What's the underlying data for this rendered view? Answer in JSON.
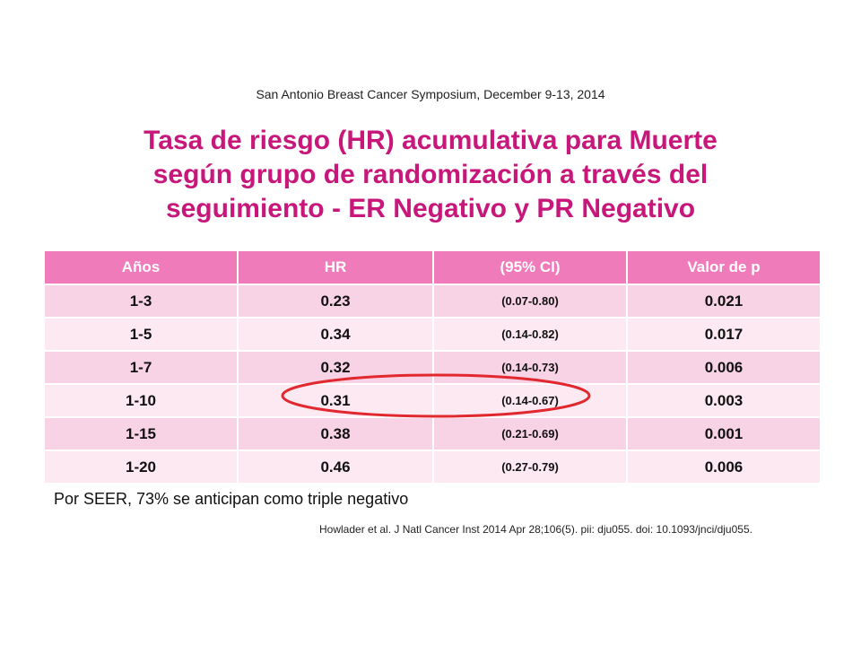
{
  "header_note": "San Antonio Breast Cancer Symposium, December 9-13, 2014",
  "title_lines": [
    "Tasa de riesgo (HR) acumulativa para Muerte",
    "según grupo de randomización a través del",
    "seguimiento  - ER Negativo y PR Negativo"
  ],
  "table": {
    "headers": [
      "Años",
      "HR",
      "(95% CI)",
      "Valor de p"
    ],
    "rows": [
      [
        "1-3",
        "0.23",
        "(0.07-0.80)",
        "0.021"
      ],
      [
        "1-5",
        "0.34",
        "(0.14-0.82)",
        "0.017"
      ],
      [
        "1-7",
        "0.32",
        "(0.14-0.73)",
        "0.006"
      ],
      [
        "1-10",
        "0.31",
        "(0.14-0.67)",
        "0.003"
      ],
      [
        "1-15",
        "0.38",
        "(0.21-0.69)",
        "0.001"
      ],
      [
        "1-20",
        "0.46",
        "(0.27-0.79)",
        "0.006"
      ]
    ]
  },
  "note": "Por SEER, 73% se anticipan como triple negativo",
  "citation": "Howlader et al. J Natl Cancer Inst 2014 Apr 28;106(5). pii: dju055. doi: 10.1093/jnci/dju055.",
  "colors": {
    "title": "#c8177a",
    "header_fill": "#ef7bbb",
    "row_odd": "#f8d3e5",
    "row_even": "#fce9f1",
    "highlight_oval": "#e0282e"
  }
}
